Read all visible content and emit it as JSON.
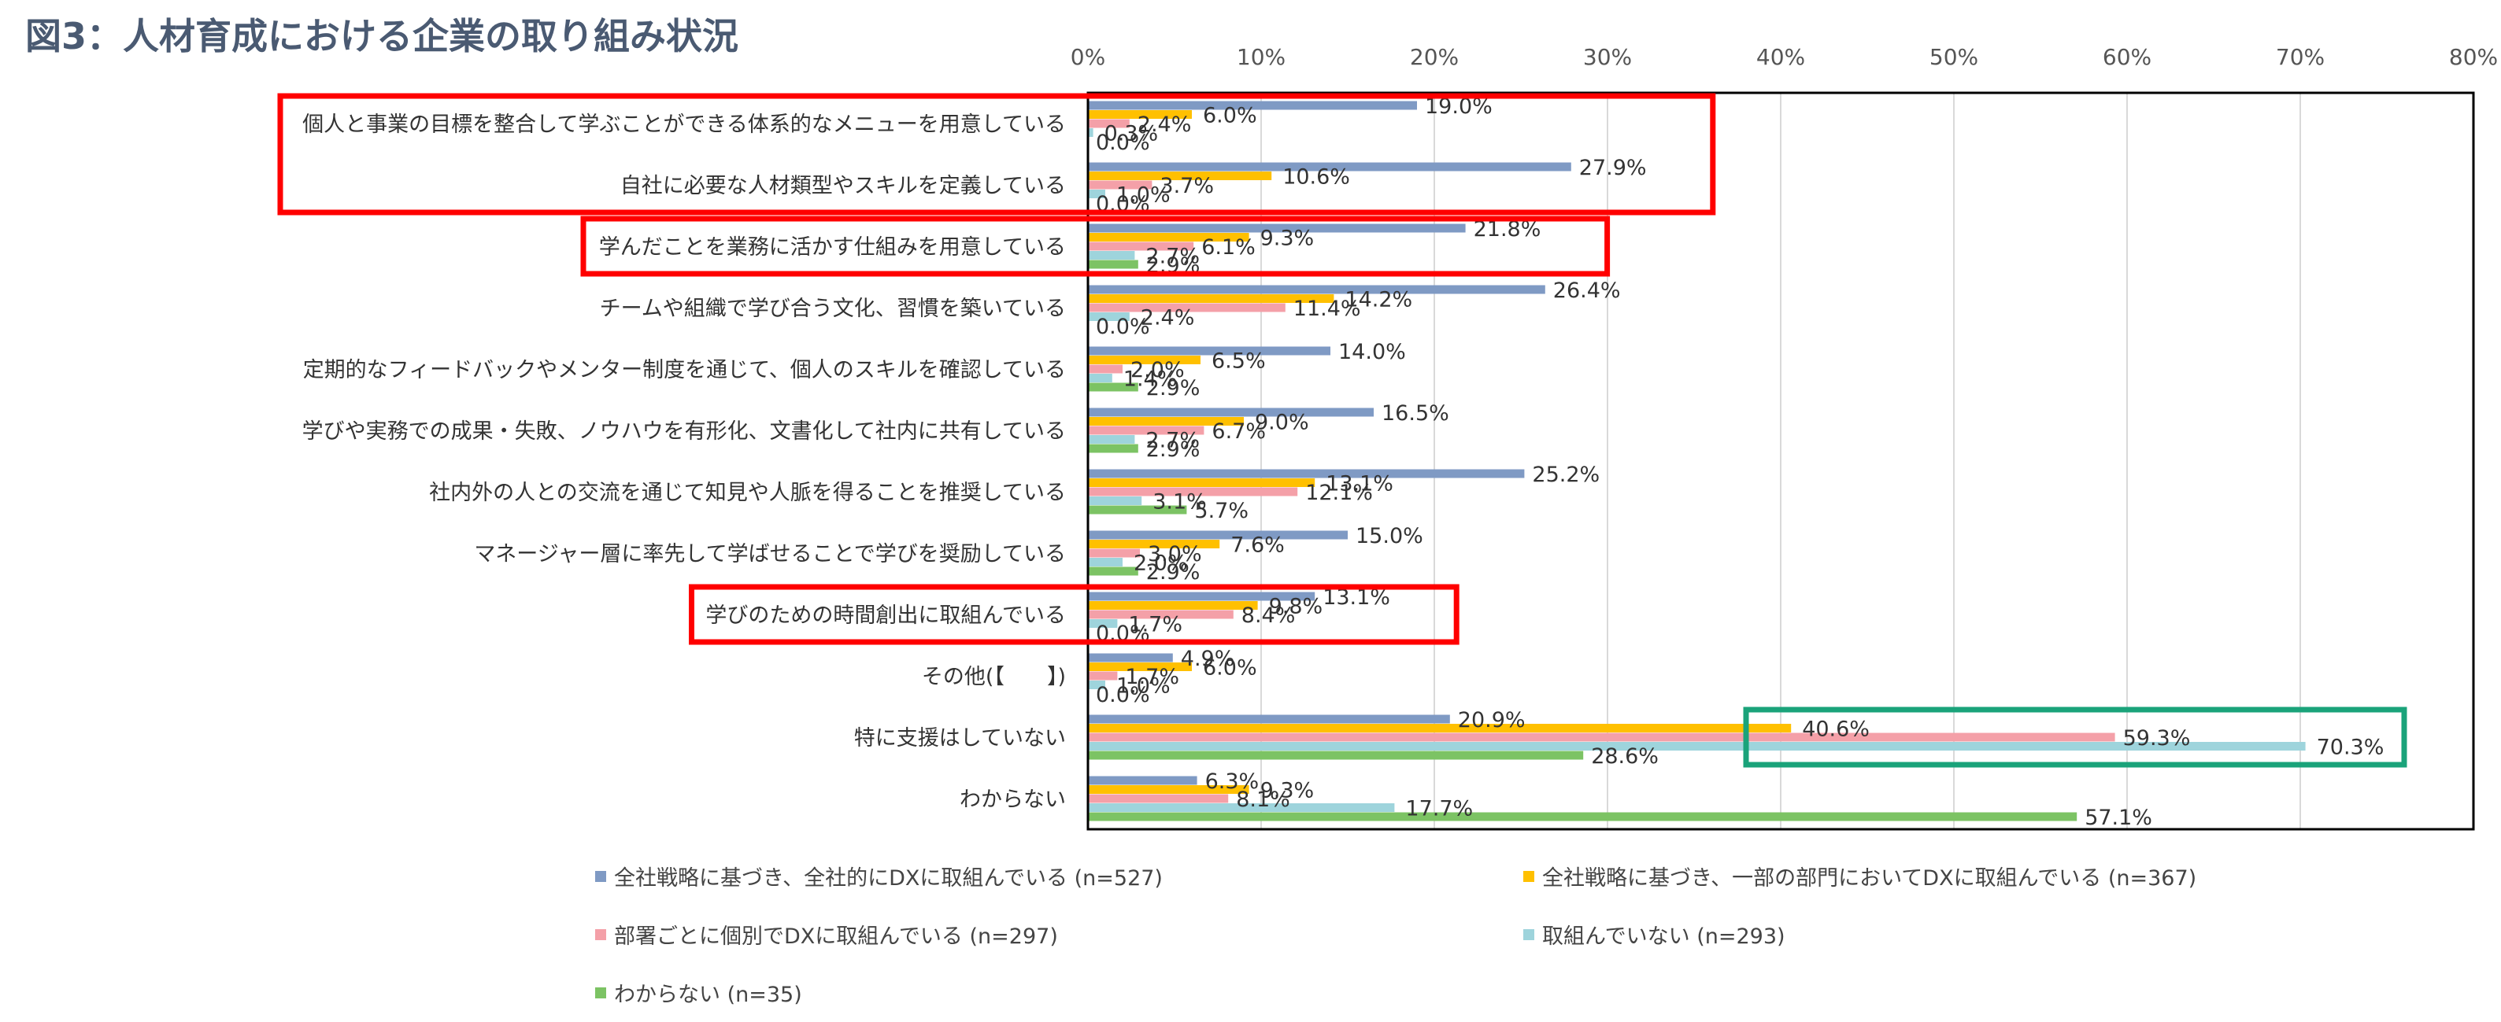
{
  "title": "図3：人材育成における企業の取り組み状況",
  "chart_data": {
    "type": "bar",
    "orientation": "horizontal",
    "title": "図3：人材育成における企業の取り組み状況",
    "xlim": [
      0,
      80
    ],
    "x_ticks": [
      "0%",
      "10%",
      "20%",
      "30%",
      "40%",
      "50%",
      "60%",
      "70%",
      "80%"
    ],
    "grid": true,
    "legend_position": "bottom",
    "categories": [
      "個人と事業の目標を整合して学ぶことができる体系的なメニューを用意している",
      "自社に必要な人材類型やスキルを定義している",
      "学んだことを業務に活かす仕組みを用意している",
      "チームや組織で学び合う文化、習慣を築いている",
      "定期的なフィードバックやメンター制度を通じて、個人のスキルを確認している",
      "学びや実務での成果・失敗、ノウハウを有形化、文書化して社内に共有している",
      "社内外の人との交流を通じて知見や人脈を得ることを推奨している",
      "マネージャー層に率先して学ばせることで学びを奨励している",
      "学びのための時間創出に取組んでいる",
      "その他(【　　】)",
      "特に支援はしていない",
      "わからない"
    ],
    "series": [
      {
        "name": "全社戦略に基づき、全社的にDXに取組んでいる (n=527)",
        "color": "#7f9ac4",
        "values": [
          19.0,
          27.9,
          21.8,
          26.4,
          14.0,
          16.5,
          25.2,
          15.0,
          13.1,
          4.9,
          20.9,
          6.3
        ]
      },
      {
        "name": "全社戦略に基づき、一部の部門においてDXに取組んでいる (n=367)",
        "color": "#ffc000",
        "values": [
          6.0,
          10.6,
          9.3,
          14.2,
          6.5,
          9.0,
          13.1,
          7.6,
          9.8,
          6.0,
          40.6,
          9.3
        ]
      },
      {
        "name": "部署ごとに個別でDXに取組んでいる (n=297)",
        "color": "#f4a0a8",
        "values": [
          2.4,
          3.7,
          6.1,
          11.4,
          2.0,
          6.7,
          12.1,
          3.0,
          8.4,
          1.7,
          59.3,
          8.1
        ]
      },
      {
        "name": "取組んでいない (n=293)",
        "color": "#9ed4dc",
        "values": [
          0.3,
          1.0,
          2.7,
          2.4,
          1.4,
          2.7,
          3.1,
          2.0,
          1.7,
          1.0,
          70.3,
          17.7
        ]
      },
      {
        "name": "わからない (n=35)",
        "color": "#7cc364",
        "values": [
          0.0,
          0.0,
          2.9,
          0.0,
          2.9,
          2.9,
          5.7,
          2.9,
          0.0,
          0.0,
          28.6,
          57.1
        ]
      }
    ],
    "highlight_boxes": [
      {
        "color": "#ff0000",
        "categories": [
          0,
          1
        ]
      },
      {
        "color": "#ff0000",
        "categories": [
          2
        ]
      },
      {
        "color": "#ff0000",
        "categories": [
          8
        ]
      },
      {
        "color": "#1aa37a",
        "categories": [
          10
        ],
        "x_range": [
          38,
          76
        ]
      }
    ]
  }
}
